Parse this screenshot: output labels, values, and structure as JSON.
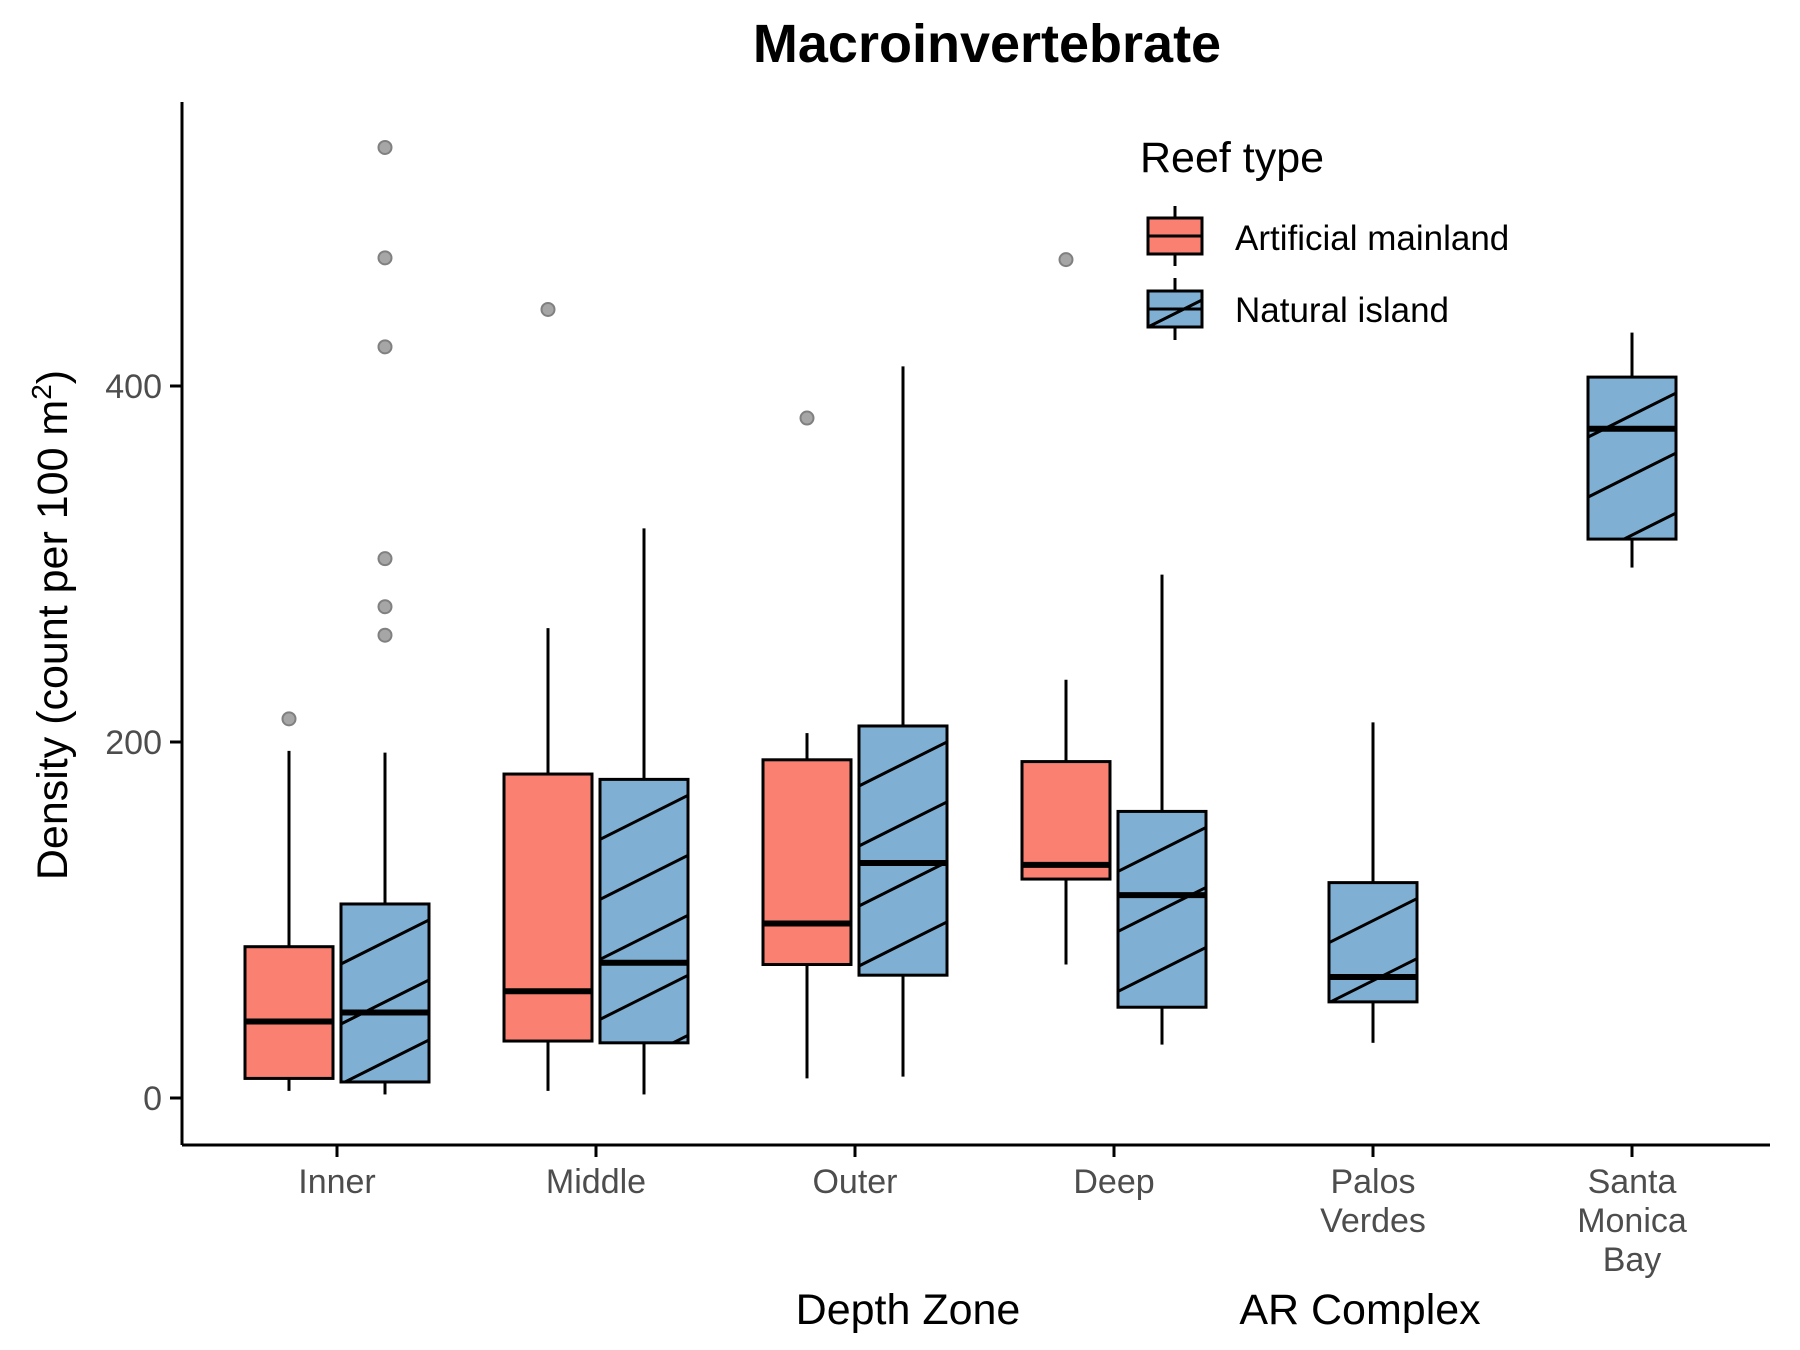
{
  "chart_data": {
    "type": "boxplot",
    "title": "Macroinvertebrate",
    "ylabel_main": "Density (count per 100 m",
    "ylabel_sup": "2",
    "ylabel_close": ")",
    "ylim": [
      -25,
      560
    ],
    "yticks": [
      0,
      200,
      400
    ],
    "groups": [
      {
        "label": "Depth Zone",
        "categories": [
          "Inner",
          "Middle",
          "Outer",
          "Deep"
        ]
      },
      {
        "label": "AR Complex",
        "categories": [
          "Palos Verdes",
          "Santa Monica Bay"
        ]
      }
    ],
    "category_lines": [
      [
        "Inner"
      ],
      [
        "Middle"
      ],
      [
        "Outer"
      ],
      [
        "Deep"
      ],
      [
        "Palos",
        "Verdes"
      ],
      [
        "Santa",
        "Monica",
        "Bay"
      ]
    ],
    "legend": {
      "title": "Reef type",
      "position": "top-right",
      "entries": [
        {
          "name": "Artificial mainland",
          "color": "#fa8072",
          "hatch": false
        },
        {
          "name": "Natural island",
          "color": "#7fb0d3",
          "hatch": true
        }
      ]
    },
    "series": [
      {
        "name": "Artificial mainland",
        "color": "#fa8072",
        "boxes": [
          {
            "category": "Inner",
            "whisker_low": 4,
            "q1": 11,
            "median": 43,
            "q3": 85,
            "whisker_high": 195,
            "outliers": [
              213
            ]
          },
          {
            "category": "Middle",
            "whisker_low": 4,
            "q1": 32,
            "median": 60,
            "q3": 182,
            "whisker_high": 264,
            "outliers": [
              443
            ]
          },
          {
            "category": "Outer",
            "whisker_low": 11,
            "q1": 75,
            "median": 98,
            "q3": 190,
            "whisker_high": 205,
            "outliers": [
              382
            ]
          },
          {
            "category": "Deep",
            "whisker_low": 75,
            "q1": 123,
            "median": 131,
            "q3": 189,
            "whisker_high": 235,
            "outliers": [
              471
            ]
          }
        ]
      },
      {
        "name": "Natural island",
        "color": "#7fb0d3",
        "boxes": [
          {
            "category": "Inner",
            "whisker_low": 2,
            "q1": 9,
            "median": 48,
            "q3": 109,
            "whisker_high": 194,
            "outliers": [
              260,
              276,
              303,
              422,
              472,
              534
            ]
          },
          {
            "category": "Middle",
            "whisker_low": 2,
            "q1": 31,
            "median": 76,
            "q3": 179,
            "whisker_high": 320,
            "outliers": []
          },
          {
            "category": "Outer",
            "whisker_low": 12,
            "q1": 69,
            "median": 132,
            "q3": 209,
            "whisker_high": 411,
            "outliers": []
          },
          {
            "category": "Deep",
            "whisker_low": 30,
            "q1": 51,
            "median": 114,
            "q3": 161,
            "whisker_high": 294,
            "outliers": []
          },
          {
            "category": "Palos Verdes",
            "whisker_low": 31,
            "q1": 54,
            "median": 68,
            "q3": 121,
            "whisker_high": 211,
            "outliers": []
          },
          {
            "category": "Santa Monica Bay",
            "whisker_low": 298,
            "q1": 314,
            "median": 376,
            "q3": 405,
            "whisker_high": 430,
            "outliers": []
          }
        ]
      }
    ]
  }
}
